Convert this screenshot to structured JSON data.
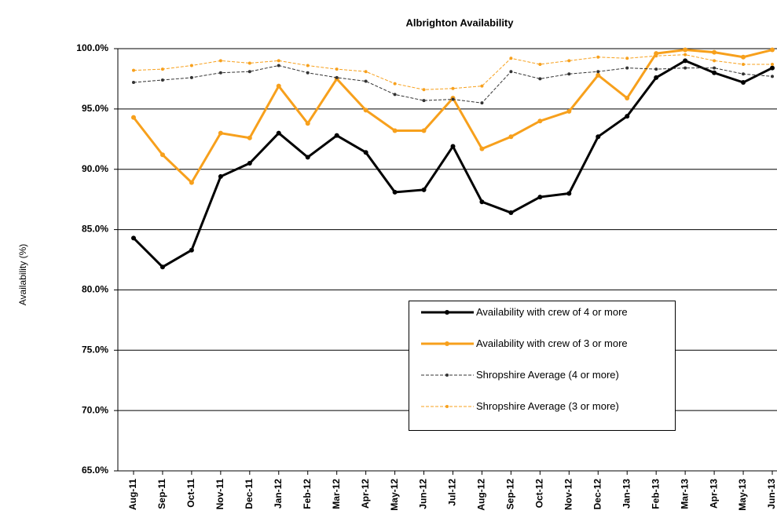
{
  "chart_data": {
    "type": "line",
    "title": "Albrighton Availability",
    "y_label": "Availability (%)",
    "categories": [
      "Aug-11",
      "Sep-11",
      "Oct-11",
      "Nov-11",
      "Dec-11",
      "Jan-12",
      "Feb-12",
      "Mar-12",
      "Apr-12",
      "May-12",
      "Jun-12",
      "Jul-12",
      "Aug-12",
      "Sep-12",
      "Oct-12",
      "Nov-12",
      "Dec-12",
      "Jan-13",
      "Feb-13",
      "Mar-13",
      "Apr-13",
      "May-13",
      "Jun-13"
    ],
    "series": [
      {
        "name": "Availability with crew of 4 or more",
        "color": "#000000",
        "width": 3,
        "dashed": false,
        "values": [
          84.3,
          81.9,
          83.3,
          89.4,
          90.5,
          93.0,
          91.0,
          92.8,
          91.4,
          88.1,
          88.3,
          91.9,
          87.3,
          86.4,
          87.7,
          88.0,
          92.7,
          94.4,
          97.6,
          99.0,
          98.0,
          97.2,
          98.4
        ]
      },
      {
        "name": "Availability with crew of 3 or more",
        "color": "#f7a01c",
        "width": 3,
        "dashed": false,
        "values": [
          94.3,
          91.2,
          88.9,
          93.0,
          92.6,
          96.9,
          93.8,
          97.5,
          94.9,
          93.2,
          93.2,
          95.9,
          91.7,
          92.7,
          94.0,
          94.8,
          97.8,
          95.9,
          99.6,
          99.9,
          99.7,
          99.3,
          99.9
        ]
      },
      {
        "name": "Shropshire Average (4 or more)",
        "color": "#333333",
        "width": 1,
        "dashed": true,
        "values": [
          97.2,
          97.4,
          97.6,
          98.0,
          98.1,
          98.6,
          98.0,
          97.6,
          97.3,
          96.2,
          95.7,
          95.8,
          95.5,
          98.1,
          97.5,
          97.9,
          98.1,
          98.4,
          98.3,
          98.4,
          98.4,
          97.9,
          97.7
        ]
      },
      {
        "name": "Shropshire Average (3 or more)",
        "color": "#f7a01c",
        "width": 1,
        "dashed": true,
        "values": [
          98.2,
          98.3,
          98.6,
          99.0,
          98.8,
          99.0,
          98.6,
          98.3,
          98.1,
          97.1,
          96.6,
          96.7,
          96.9,
          99.2,
          98.7,
          99.0,
          99.3,
          99.2,
          99.4,
          99.5,
          99.0,
          98.7,
          98.7
        ]
      }
    ],
    "ylim": [
      65,
      100
    ],
    "yticks": [
      {
        "value": 65,
        "label": "65.0%"
      },
      {
        "value": 70,
        "label": "70.0%"
      },
      {
        "value": 75,
        "label": "75.0%"
      },
      {
        "value": 80,
        "label": "80.0%"
      },
      {
        "value": 85,
        "label": "85.0%"
      },
      {
        "value": 90,
        "label": "90.0%"
      },
      {
        "value": 95,
        "label": "95.0%"
      },
      {
        "value": 100,
        "label": "100.0%"
      }
    ],
    "grid": true,
    "legend": "lower-right"
  }
}
